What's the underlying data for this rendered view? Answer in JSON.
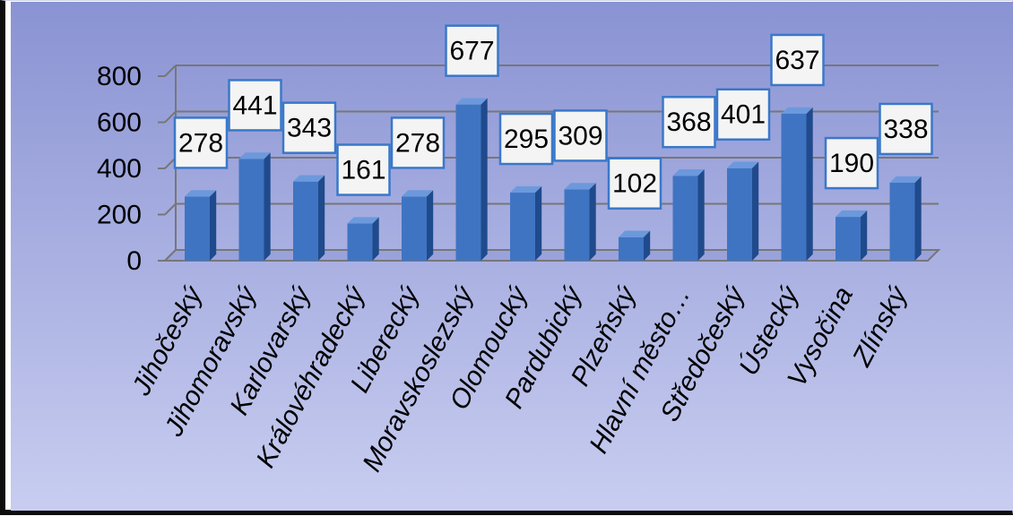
{
  "chart_data": {
    "type": "bar",
    "categories": [
      "Jihočeský",
      "Jihomoravský",
      "Karlovarský",
      "Královéhradecký",
      "Liberecký",
      "Moravskoslezský",
      "Olomoucký",
      "Pardubický",
      "Plzeňský",
      "Hlavní město…",
      "Středočeský",
      "Ústecký",
      "Vysočina",
      "Zlínský"
    ],
    "values": [
      278,
      441,
      343,
      161,
      278,
      677,
      295,
      309,
      102,
      368,
      401,
      637,
      190,
      338
    ],
    "data_labels": [
      "278",
      "441",
      "343",
      "161",
      "278",
      "677",
      "295",
      "309",
      "102",
      "368",
      "401",
      "637",
      "190",
      "338"
    ],
    "y_ticks": [
      "0",
      "200",
      "400",
      "600",
      "800"
    ],
    "ylim": [
      0,
      800
    ],
    "grid": true,
    "legend": "none",
    "bar_style": "3d-column",
    "colors": {
      "bar_front": "#3f74c2",
      "bar_side": "#1f4a8c",
      "bar_top": "#6c99dc",
      "background_top": "#8a93d3",
      "background_bottom": "#c8cdf0",
      "gridline": "#777777",
      "label_border": "#3a78c9",
      "label_fill": "#f4f4f4"
    }
  }
}
